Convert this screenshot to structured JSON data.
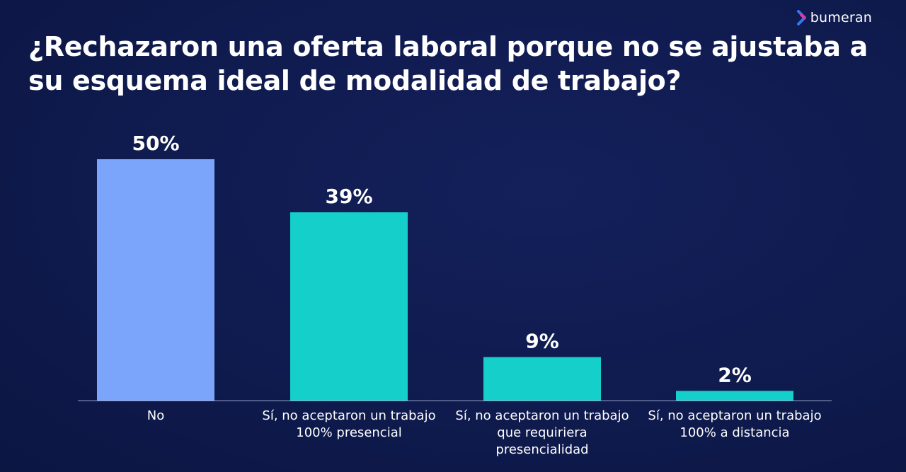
{
  "brand": {
    "name": "bumeran",
    "icon": "chevron-right-icon",
    "colors": [
      "#2f7bf5",
      "#e0389b"
    ]
  },
  "chart_data": {
    "type": "bar",
    "title": "¿Rechazaron una oferta laboral porque no se ajustaba a su esquema ideal de modalidad de trabajo?",
    "categories": [
      "No",
      "Sí, no aceptaron un trabajo 100% presencial",
      "Sí, no aceptaron un trabajo que requiriera presencialidad",
      "Sí, no aceptaron un trabajo 100% a distancia"
    ],
    "values": [
      50,
      39,
      9,
      2
    ],
    "value_labels": [
      "50%",
      "39%",
      "9%",
      "2%"
    ],
    "colors": [
      "#7ba4fb",
      "#14cfca",
      "#14cfca",
      "#14cfca"
    ],
    "ylim": [
      0,
      50
    ],
    "grid": false,
    "legend": "none"
  }
}
